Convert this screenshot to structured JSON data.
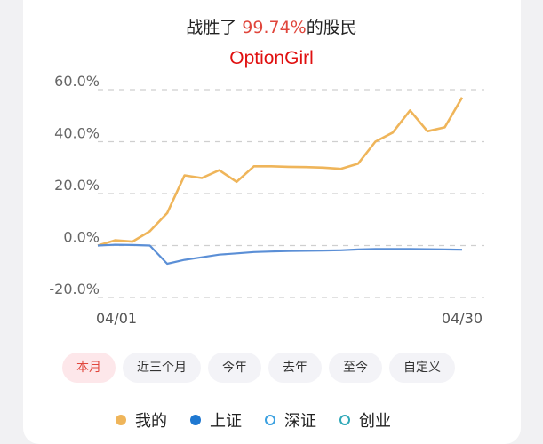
{
  "header": {
    "prefix": "战胜了 ",
    "percent": "99.74%",
    "suffix": "的股民",
    "username": "OptionGirl"
  },
  "chart_data": {
    "type": "line",
    "y_ticks": [
      "60.0%",
      "40.0%",
      "20.0%",
      "0.0%",
      "-20.0%"
    ],
    "y_tick_values": [
      60,
      40,
      20,
      0,
      -20
    ],
    "ylim": [
      -20,
      60
    ],
    "x_labels": [
      "04/01",
      "04/30"
    ],
    "grid": true,
    "series": [
      {
        "name": "我的",
        "color": "#efb55a",
        "values": [
          0.0,
          2.0,
          1.5,
          5.5,
          12.5,
          27.0,
          26.0,
          29.0,
          24.5,
          30.5,
          30.5,
          30.3,
          30.2,
          30.0,
          29.5,
          31.5,
          40.0,
          43.5,
          52.0,
          44.0,
          45.5,
          57.0
        ]
      },
      {
        "name": "上证",
        "color": "#5b8fd6",
        "values": [
          0.0,
          0.3,
          0.2,
          0.0,
          -7.0,
          -5.5,
          -4.5,
          -3.5,
          -3.0,
          -2.5,
          -2.3,
          -2.1,
          -2.0,
          -1.9,
          -1.8,
          -1.5,
          -1.3,
          -1.3,
          -1.3,
          -1.4,
          -1.5,
          -1.6
        ]
      }
    ]
  },
  "periods": [
    "本月",
    "近三个月",
    "今年",
    "去年",
    "至今",
    "自定义"
  ],
  "active_period": "本月",
  "legend": [
    {
      "label": "我的",
      "color": "#efb55a",
      "style": "filled"
    },
    {
      "label": "上证",
      "color": "#1f78d1",
      "style": "filled"
    },
    {
      "label": "深证",
      "color": "#3aa0e0",
      "style": "outline"
    },
    {
      "label": "创业",
      "color": "#2fa8b8",
      "style": "outline"
    }
  ]
}
